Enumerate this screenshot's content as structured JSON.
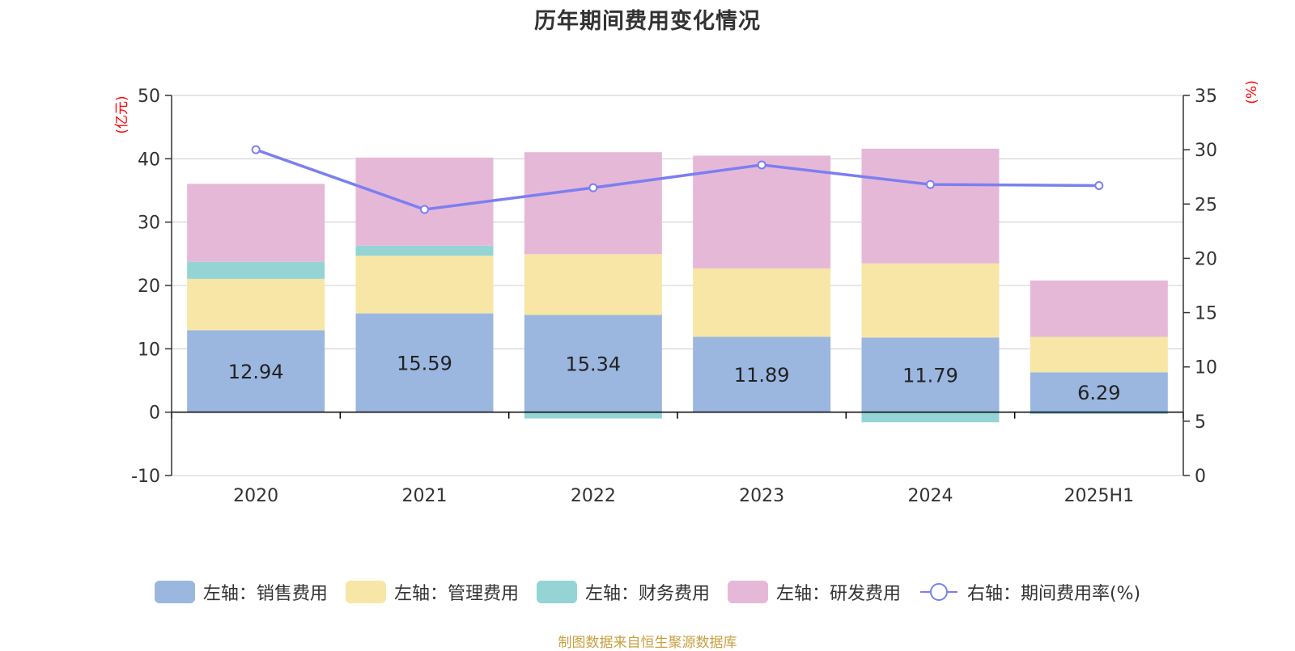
{
  "title": "历年期间费用变化情况",
  "source": "制图数据来自恒生聚源数据库",
  "left_axis_unit": "(亿元)",
  "right_axis_unit": "(%)",
  "colors": {
    "sales": "#9bb7e0",
    "admin": "#f7e6a6",
    "finance": "#94d4d4",
    "rnd": "#e6b8d8",
    "rate": "#7b7ff0",
    "unit": "#ff0000",
    "source": "#c8a040"
  },
  "legend": [
    {
      "key": "sales",
      "label": "左轴：销售费用",
      "kind": "bar"
    },
    {
      "key": "admin",
      "label": "左轴：管理费用",
      "kind": "bar"
    },
    {
      "key": "finance",
      "label": "左轴：财务费用",
      "kind": "bar"
    },
    {
      "key": "rnd",
      "label": "左轴：研发费用",
      "kind": "bar"
    },
    {
      "key": "rate",
      "label": "右轴：期间费用率(%)",
      "kind": "line"
    }
  ],
  "chart_data": {
    "type": "bar",
    "stacked": true,
    "title": "历年期间费用变化情况",
    "categories": [
      "2020",
      "2021",
      "2022",
      "2023",
      "2024",
      "2025H1"
    ],
    "left_axis": {
      "ylim": [
        -10,
        50
      ],
      "ticks": [
        -10,
        0,
        10,
        20,
        30,
        40,
        50
      ],
      "unit": "(亿元)"
    },
    "right_axis": {
      "ylim": [
        0,
        35
      ],
      "ticks": [
        0,
        5,
        10,
        15,
        20,
        25,
        30,
        35
      ],
      "unit": "(%)"
    },
    "series": [
      {
        "key": "sales",
        "name": "左轴：销售费用",
        "axis": "left",
        "type": "bar",
        "values": [
          12.94,
          15.59,
          15.34,
          11.89,
          11.79,
          6.29
        ],
        "data_labels": [
          "12.94",
          "15.59",
          "15.34",
          "11.89",
          "11.79",
          "6.29"
        ]
      },
      {
        "key": "admin",
        "name": "左轴：管理费用",
        "axis": "left",
        "type": "bar",
        "values": [
          8.1,
          9.1,
          9.6,
          10.8,
          11.7,
          5.6
        ]
      },
      {
        "key": "finance",
        "name": "左轴：财务费用",
        "axis": "left",
        "type": "bar",
        "values": [
          2.7,
          1.6,
          -1.0,
          0,
          -1.6,
          -0.3
        ]
      },
      {
        "key": "rnd",
        "name": "左轴：研发费用",
        "axis": "left",
        "type": "bar",
        "values": [
          12.3,
          13.9,
          16.1,
          17.8,
          18.1,
          8.9
        ]
      },
      {
        "key": "rate",
        "name": "右轴：期间费用率(%)",
        "axis": "right",
        "type": "line",
        "values": [
          30.0,
          24.5,
          26.5,
          28.6,
          26.8,
          26.7
        ]
      }
    ],
    "grid": true,
    "legend_position": "bottom"
  }
}
